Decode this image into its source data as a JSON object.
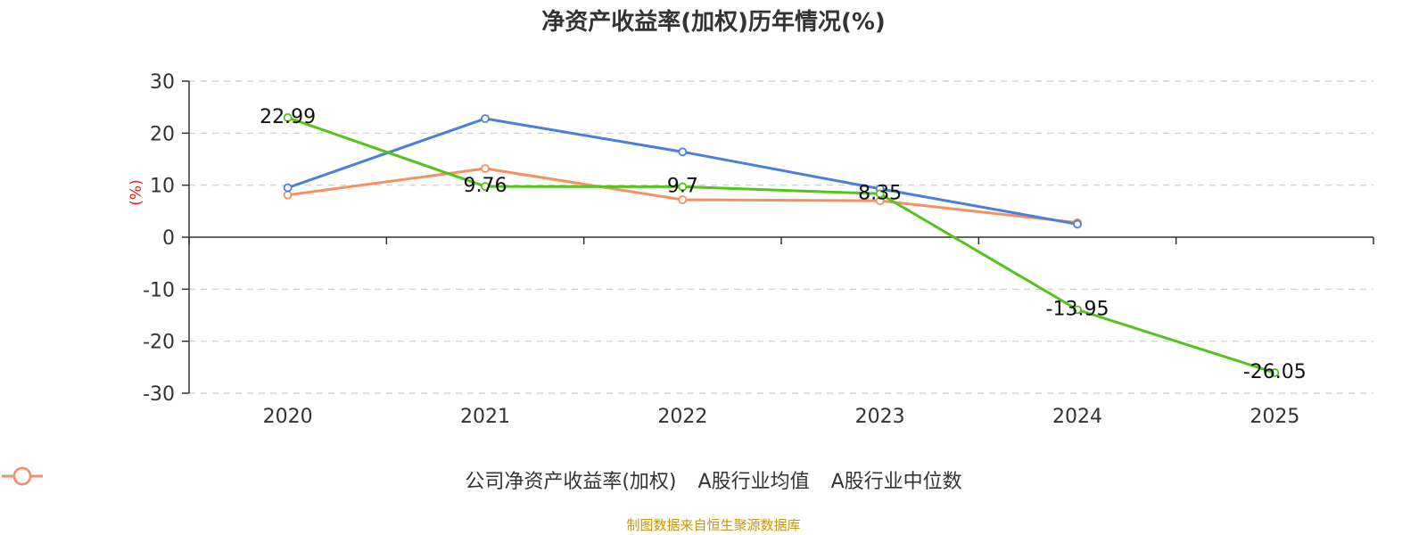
{
  "chart_data": {
    "type": "line",
    "title": "净资产收益率(加权)历年情况(%)",
    "ylabel": "(%)",
    "categories": [
      "2020",
      "2021",
      "2022",
      "2023",
      "2024",
      "2025"
    ],
    "ylim": [
      -30,
      30
    ],
    "yticks": [
      30,
      20,
      10,
      0,
      -10,
      -20,
      -30
    ],
    "grid": true,
    "legend_position": "bottom",
    "series": [
      {
        "name": "公司净资产收益率(加权)",
        "color": "#52c41a",
        "values": [
          22.99,
          9.76,
          9.7,
          8.35,
          -13.95,
          -26.05
        ],
        "labels": [
          "22.99",
          "9.76",
          "9.7",
          "8.35",
          "-13.95",
          "-26.05"
        ]
      },
      {
        "name": "A股行业均值",
        "color": "#4a7fdc",
        "values": [
          9.5,
          22.8,
          16.4,
          9.3,
          2.5,
          null
        ]
      },
      {
        "name": "A股行业中位数",
        "color": "#f79060",
        "values": [
          8.1,
          13.2,
          7.2,
          7.0,
          2.8,
          null
        ]
      }
    ]
  },
  "footer": {
    "source": "制图数据来自恒生聚源数据库",
    "source_color": "#c8960a"
  }
}
